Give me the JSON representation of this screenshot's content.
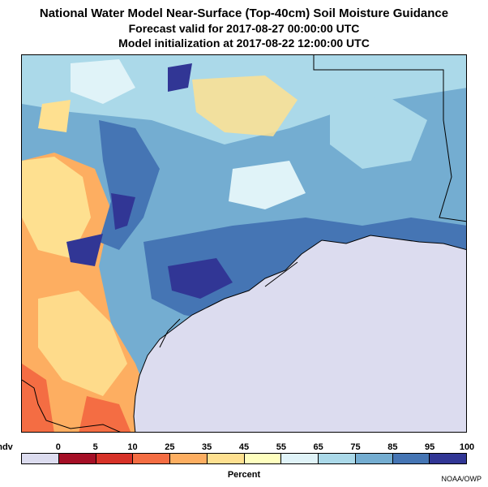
{
  "header": {
    "title": "National Water Model Near-Surface (Top-40cm) Soil Moisture Guidance",
    "forecast_valid": "Forecast valid for 2017-08-27 00:00:00 UTC",
    "initialization": "Model initialization at 2017-08-22 12:00:00 UTC"
  },
  "colorbar": {
    "labels": [
      "ndv",
      "0",
      "5",
      "10",
      "25",
      "35",
      "45",
      "55",
      "65",
      "75",
      "85",
      "95",
      "100"
    ],
    "colors": [
      "#dcdcef",
      "#a50f26",
      "#d73228",
      "#f46d43",
      "#fdae61",
      "#fee090",
      "#ffffbf",
      "#e0f3f8",
      "#abd9e9",
      "#74add1",
      "#4575b4",
      "#313695"
    ],
    "unit_label": "Percent"
  },
  "credit": "NOAA/OWP",
  "map": {
    "gulf_color": "#dcdcef",
    "land_wet_color": "#4575b4",
    "land_dry_color": "#fdae61"
  }
}
